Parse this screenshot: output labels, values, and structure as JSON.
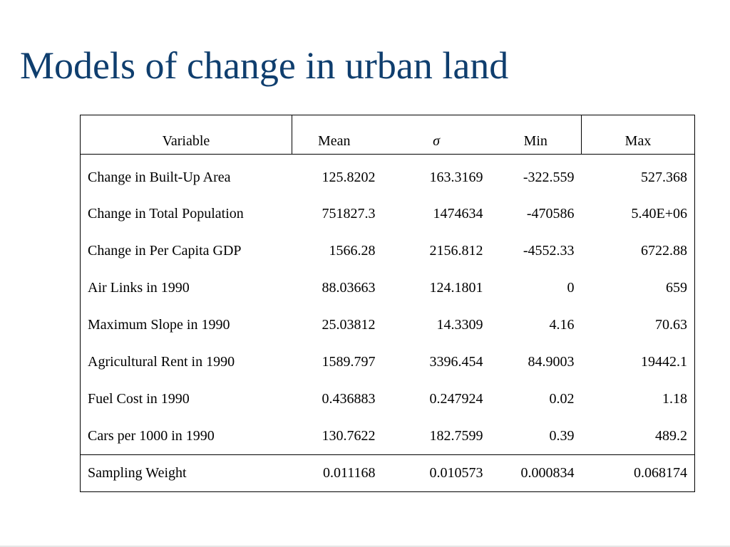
{
  "title": "Models of change in urban land",
  "table": {
    "headers": [
      "Variable",
      "Mean",
      "σ",
      "Min",
      "Max"
    ],
    "rows": [
      [
        "Change in Built-Up Area",
        "125.8202",
        "163.3169",
        "-322.559",
        "527.368"
      ],
      [
        "Change in Total Population",
        "751827.3",
        "1474634",
        "-470586",
        "5.40E+06"
      ],
      [
        "Change in Per Capita GDP",
        "1566.28",
        "2156.812",
        "-4552.33",
        "6722.88"
      ],
      [
        "Air Links in 1990",
        "88.03663",
        "124.1801",
        "0",
        "659"
      ],
      [
        "Maximum Slope in 1990",
        "25.03812",
        "14.3309",
        "4.16",
        "70.63"
      ],
      [
        "Agricultural Rent in 1990",
        "1589.797",
        "3396.454",
        "84.9003",
        "19442.1"
      ],
      [
        "Fuel Cost in 1990",
        "0.436883",
        "0.247924",
        "0.02",
        "1.18"
      ],
      [
        "Cars per 1000 in 1990",
        "130.7622",
        "182.7599",
        "0.39",
        "489.2"
      ],
      [
        "Sampling Weight",
        "0.011168",
        "0.010573",
        "0.000834",
        "0.068174"
      ]
    ]
  }
}
